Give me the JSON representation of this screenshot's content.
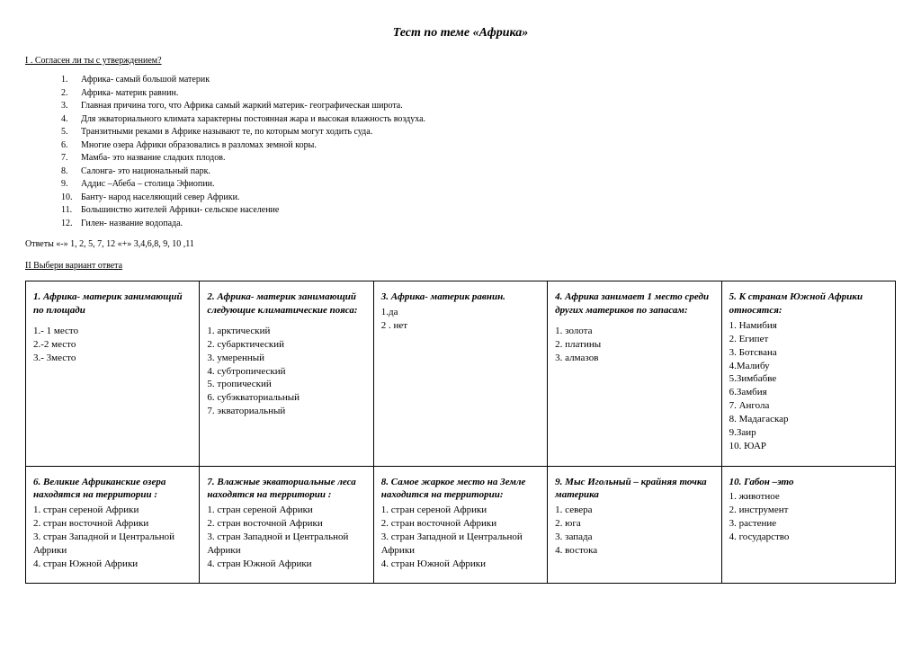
{
  "title": "Тест  по теме «Африка»",
  "section1": {
    "heading": "I .  Согласен ли ты с утверждением?",
    "items": [
      "Африка- самый большой материк",
      "Африка- материк равнин.",
      "Главная причина того, что Африка самый жаркий материк- географическая широта.",
      "Для экваториального климата характерны постоянная жара и высокая влажность воздуха.",
      "Транзитными реками в Африке называют те, по которым могут ходить суда.",
      "Многие озера Африки образовались в разломах земной коры.",
      "Мамба- это название сладких плодов.",
      "Салонга- это национальный парк.",
      "Аддис –Абеба – столица Эфиопии.",
      "Банту- народ населяющий север Африки.",
      "Большинство жителей Африки- сельское население",
      "Гилен- название водопада."
    ],
    "answers": "Ответы    «-»   1, 2, 5, 7, 12          «+»    3,4,6,8, 9, 10 ,11"
  },
  "section2": {
    "heading": "II  Выбери вариант ответа",
    "cells": [
      {
        "title": "1. Африка- материк занимающий по площади",
        "opts": [
          "1.- 1 место",
          "2.-2 место",
          "3.- 3место"
        ],
        "leadGap": true
      },
      {
        "title": "2. Африка- материк занимающий следующие климатические пояса:",
        "opts": [
          "1. арктический",
          "2. субарктический",
          "3. умеренный",
          "4. субтропический",
          "5. тропический",
          "6. субэкваториальный",
          "7.  экваториальный"
        ],
        "leadGap": true
      },
      {
        "title": "3.  Африка- материк равнин.",
        "opts": [
          "1.да",
          "2 . нет"
        ]
      },
      {
        "title": "4. Африка занимает 1 место среди других материков по запасам:",
        "opts": [
          "1. золота",
          "2. платины",
          "3. алмазов"
        ],
        "leadGap": true
      },
      {
        "title": "5. К странам Южной Африки относятся:",
        "opts": [
          "1. Намибия",
          "2. Египет",
          "3. Ботсвана",
          "4.Малибу",
          "5.Зимбабве",
          "6.Замбия",
          "7. Ангола",
          "8. Мадагаскар",
          "9.Заир",
          "10. ЮАР"
        ]
      },
      {
        "title": "6. Великие Африканские озера находятся на территории :",
        "opts": [
          "1. стран сереной Африки",
          "2. стран восточной Африки",
          "3. стран Западной и Центральной Африки",
          "4. стран Южной Африки"
        ]
      },
      {
        "title": "7. Влажные экваториальные леса находятся  на территории :",
        "opts": [
          "1. стран сереной Африки",
          "2. стран восточной Африки",
          "3. стран Западной и Центральной Африки",
          "4. стран Южной Африки"
        ]
      },
      {
        "title": "8. Самое жаркое место на Земле находится на территории:",
        "opts": [
          "1. стран сереной Африки",
          "2. стран восточной Африки",
          "3. стран Западной и Центральной Африки",
          "4. стран Южной Африки"
        ]
      },
      {
        "title": "9. Мыс Игольный – крайняя точка материка",
        "opts": [
          "1. севера",
          "2. юга",
          "3. запада",
          "4. востока"
        ]
      },
      {
        "title": "10. Габон –это",
        "opts": [
          "1. животное",
          "2. инструмент",
          "3. растение",
          "4. государство"
        ]
      }
    ]
  }
}
